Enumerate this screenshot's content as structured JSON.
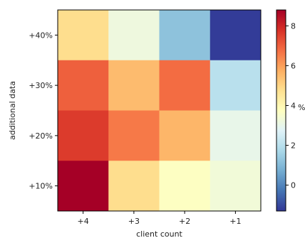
{
  "chart_data": {
    "type": "heatmap",
    "title": "",
    "xlabel": "client count",
    "ylabel": "additional data",
    "x_categories": [
      "+4",
      "+3",
      "+2",
      "+1"
    ],
    "y_categories": [
      "+40%",
      "+30%",
      "+20%",
      "+10%"
    ],
    "values": [
      [
        4.8,
        3.2,
        1.2,
        -1.2
      ],
      [
        7.0,
        5.5,
        6.8,
        2.0
      ],
      [
        7.6,
        6.6,
        5.6,
        3.0
      ],
      [
        8.8,
        4.8,
        3.7,
        3.3
      ]
    ],
    "colorbar": {
      "label": "%",
      "ticks": [
        0,
        2,
        4,
        6,
        8
      ],
      "range": [
        -1.3,
        8.8
      ],
      "colormap": "RdYlBu_r"
    },
    "grid": false
  }
}
